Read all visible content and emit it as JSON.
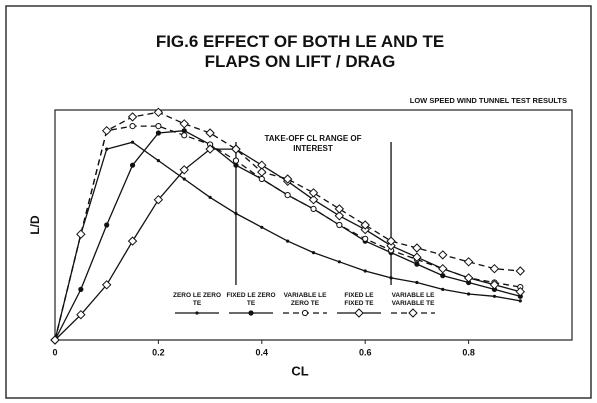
{
  "chart_data": {
    "type": "line",
    "title": "FIG.6 EFFECT OF BOTH LE AND TE FLAPS ON LIFT / DRAG",
    "subtitle": "LOW SPEED WIND TUNNEL TEST RESULTS",
    "annotation": "TAKE-OFF CL RANGE OF INTEREST",
    "cl_range": [
      0.35,
      0.65
    ],
    "xlabel": "CL",
    "ylabel": "L/D",
    "x": [
      0,
      0.05,
      0.1,
      0.15,
      0.2,
      0.25,
      0.3,
      0.35,
      0.4,
      0.45,
      0.5,
      0.55,
      0.6,
      0.65,
      0.7,
      0.75,
      0.8,
      0.85,
      0.9
    ],
    "xlim": [
      0,
      1
    ],
    "xticks": [
      0,
      0.2,
      0.4,
      0.6,
      0.8
    ],
    "ylim": [
      0,
      100
    ],
    "series": [
      {
        "name": "ZERO LE ZERO TE",
        "color": "#111",
        "dash": false,
        "marker": "dot",
        "values": [
          0,
          46,
          83,
          86,
          78,
          70,
          62,
          55,
          49,
          43,
          38,
          34,
          30,
          27,
          25,
          22,
          20,
          19,
          17
        ]
      },
      {
        "name": "FIXED LE ZERO TE",
        "color": "#111",
        "dash": false,
        "marker": "filled-circle",
        "values": [
          0,
          22,
          50,
          76,
          90,
          91,
          85,
          76,
          70,
          63,
          57,
          50,
          43,
          38,
          33,
          28,
          25,
          22,
          19
        ]
      },
      {
        "name": "VARIABLE LE ZERO TE",
        "color": "#111",
        "dash": true,
        "marker": "open-circle",
        "values": [
          0,
          46,
          91,
          93,
          93,
          89,
          85,
          78,
          70,
          63,
          57,
          50,
          44,
          39,
          35,
          31,
          27,
          25,
          23
        ]
      },
      {
        "name": "FIXED LE FIXED TE",
        "color": "#111",
        "dash": false,
        "marker": "diamond",
        "values": [
          0,
          11,
          24,
          43,
          61,
          74,
          83,
          83,
          76,
          69,
          61,
          54,
          48,
          41,
          36,
          31,
          27,
          24,
          21
        ]
      },
      {
        "name": "VARIABLE LE VARIABLE TE",
        "color": "#111",
        "dash": true,
        "marker": "diamond",
        "values": [
          0,
          46,
          91,
          97,
          99,
          94,
          90,
          83,
          73,
          70,
          64,
          57,
          50,
          43,
          40,
          37,
          34,
          31,
          30
        ]
      }
    ]
  }
}
